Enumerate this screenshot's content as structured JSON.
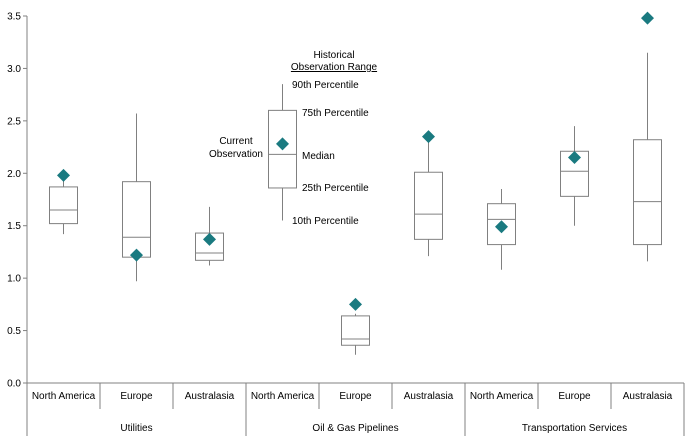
{
  "chart_data": {
    "type": "boxplot",
    "ylim": [
      0,
      3.5
    ],
    "y_ticks": [
      "0.0",
      "0.5",
      "1.0",
      "1.5",
      "2.0",
      "2.5",
      "3.0",
      "3.5"
    ],
    "groups": [
      "Utilities",
      "Oil & Gas Pipelines",
      "Transportation Services"
    ],
    "categories": [
      "North America",
      "Europe",
      "Australasia",
      "North America",
      "Europe",
      "Australasia",
      "North America",
      "Europe",
      "Australasia"
    ],
    "boxes": [
      {
        "p10": 1.42,
        "p25": 1.52,
        "median": 1.65,
        "p75": 1.87,
        "p90": 1.99,
        "current": 1.98
      },
      {
        "p10": 0.97,
        "p25": 1.2,
        "median": 1.39,
        "p75": 1.92,
        "p90": 2.57,
        "current": 1.22
      },
      {
        "p10": 1.12,
        "p25": 1.17,
        "median": 1.24,
        "p75": 1.43,
        "p90": 1.68,
        "current": 1.37
      },
      {
        "p10": 1.55,
        "p25": 1.86,
        "median": 2.18,
        "p75": 2.6,
        "p90": 2.85,
        "current": 2.28
      },
      {
        "p10": 0.27,
        "p25": 0.36,
        "median": 0.42,
        "p75": 0.64,
        "p90": 0.66,
        "current": 0.75
      },
      {
        "p10": 1.21,
        "p25": 1.37,
        "median": 1.61,
        "p75": 2.01,
        "p90": 2.34,
        "current": 2.35
      },
      {
        "p10": 1.08,
        "p25": 1.32,
        "median": 1.56,
        "p75": 1.71,
        "p90": 1.85,
        "current": 1.49
      },
      {
        "p10": 1.5,
        "p25": 1.78,
        "median": 2.02,
        "p75": 2.21,
        "p90": 2.45,
        "current": 2.15
      },
      {
        "p10": 1.16,
        "p25": 1.32,
        "median": 1.73,
        "p75": 2.32,
        "p90": 3.15,
        "current": 3.48
      }
    ],
    "legend": {
      "title_line1": "Historical",
      "title_line2": "Observation Range",
      "p90": "90th Percentile",
      "p75": "75th Percentile",
      "median": "Median",
      "p25": "25th Percentile",
      "p10": "10th Percentile",
      "current_line1": "Current",
      "current_line2": "Observation"
    },
    "colors": {
      "marker": "#1a7a80",
      "box": "#808080",
      "axis": "#808080"
    }
  }
}
